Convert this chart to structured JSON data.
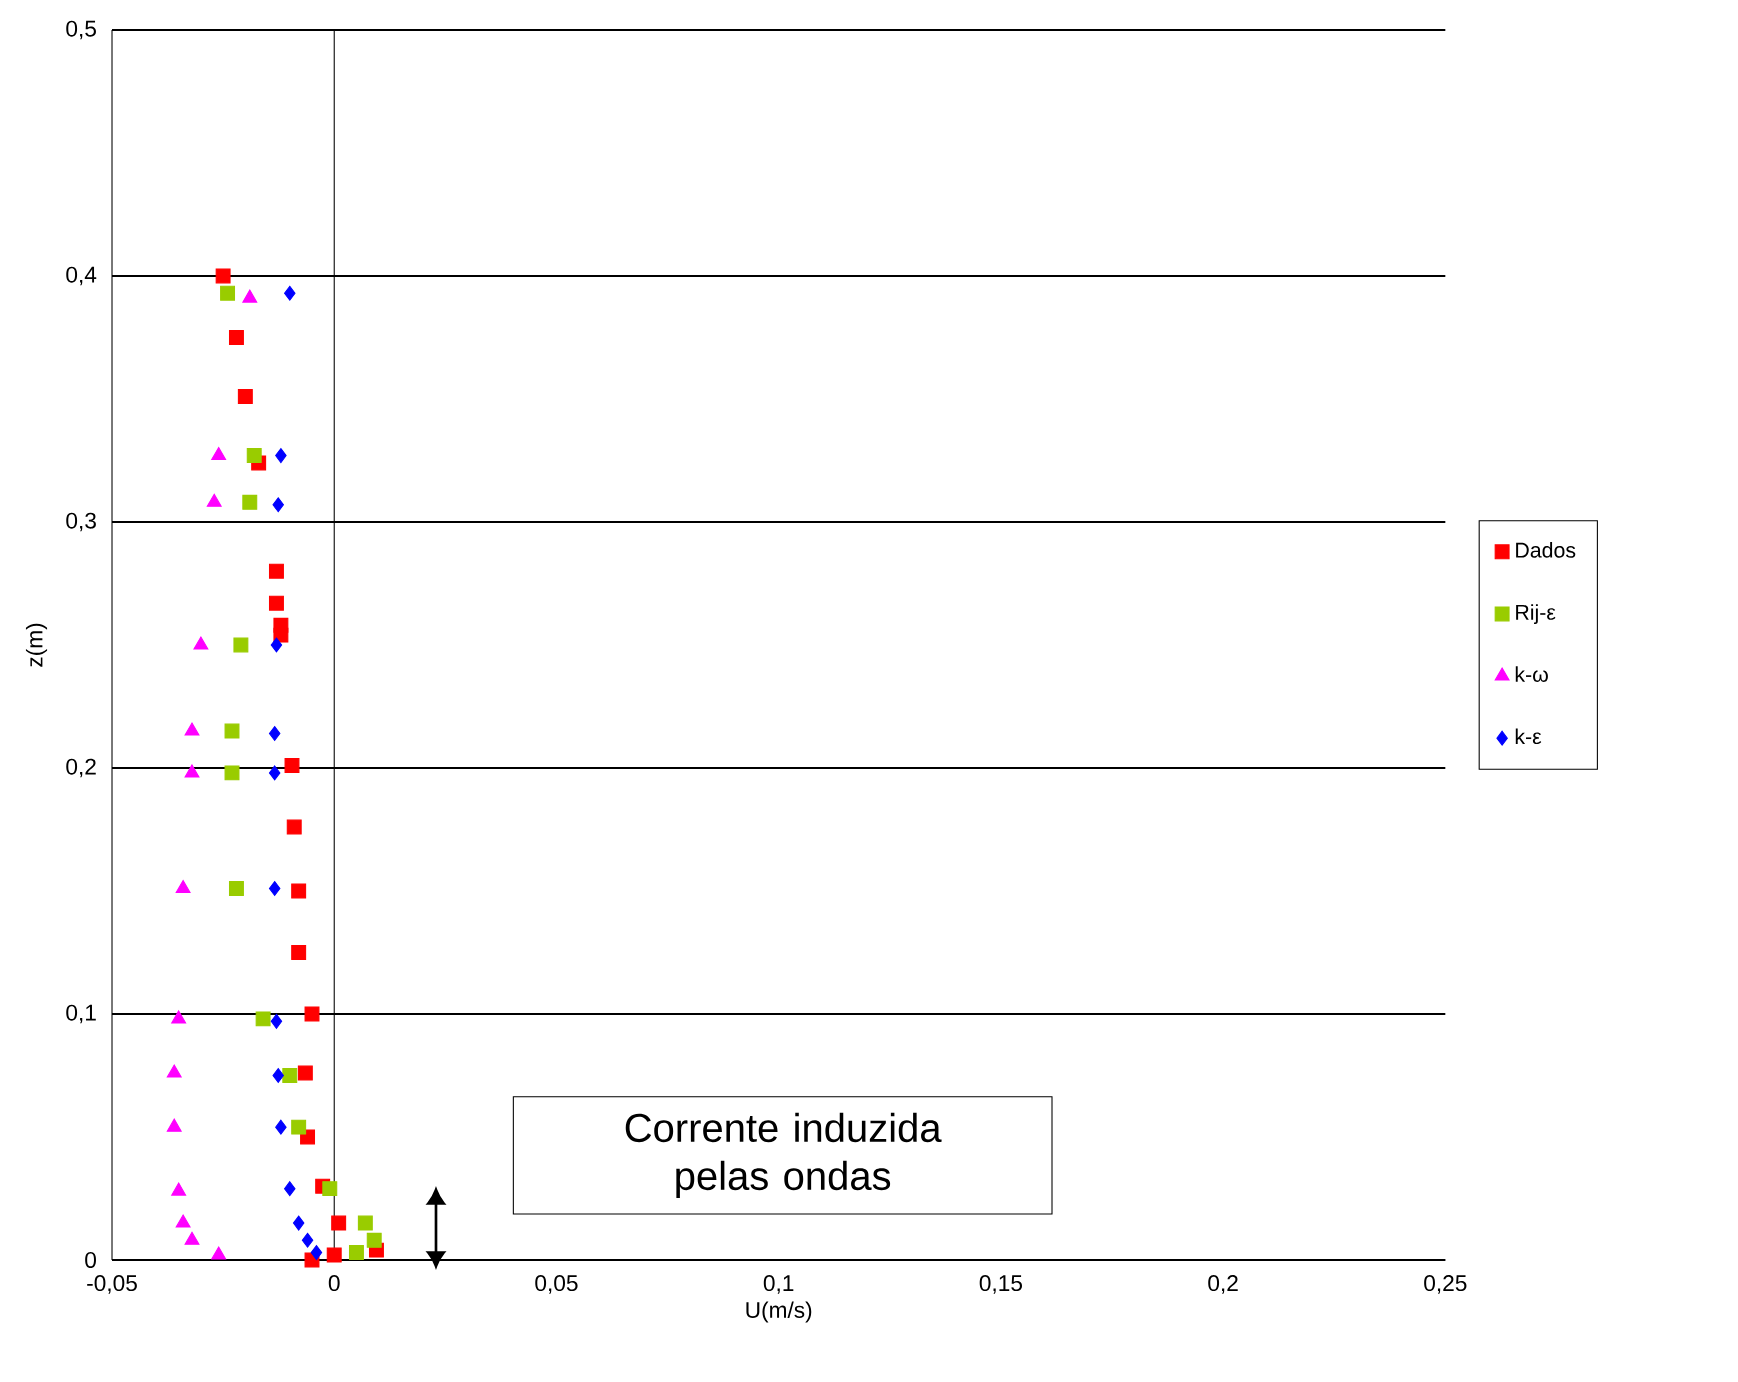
{
  "chart_data": {
    "type": "scatter",
    "xlabel": "U(m/s)",
    "ylabel": "z(m)",
    "xlim": [
      -0.05,
      0.25
    ],
    "ylim": [
      0,
      0.5
    ],
    "xticks": [
      {
        "value": -0.05,
        "label": "-0,05"
      },
      0,
      {
        "value": 0.05,
        "label": "0,05"
      },
      {
        "value": 0.1,
        "label": "0,1"
      },
      {
        "value": 0.15,
        "label": "0,15"
      },
      {
        "value": 0.2,
        "label": "0,2"
      },
      {
        "value": 0.25,
        "label": "0,25"
      }
    ],
    "yticks": [
      0,
      {
        "value": 0.1,
        "label": "0,1"
      },
      {
        "value": 0.2,
        "label": "0,2"
      },
      {
        "value": 0.3,
        "label": "0,3"
      },
      {
        "value": 0.4,
        "label": "0,4"
      },
      {
        "value": 0.5,
        "label": "0,5"
      }
    ],
    "grid": "y",
    "legend": "right",
    "ref_lines": [
      {
        "axis": "x",
        "value": 0,
        "color": "#000000"
      }
    ],
    "annotations": [
      "Corrente induzida pelas ondas"
    ],
    "series": [
      {
        "name": "Dados",
        "color": "#ff0000",
        "marker": "square",
        "x": [
          -0.025,
          -0.022,
          -0.02,
          -0.017,
          -0.013,
          -0.013,
          -0.012,
          -0.012,
          -0.0095,
          -0.009,
          -0.008,
          -0.008,
          -0.005,
          -0.0065,
          -0.006,
          -0.0026,
          0.001,
          0.0095,
          0.0,
          -0.005
        ],
        "values": [
          0.4,
          0.375,
          0.351,
          0.324,
          0.28,
          0.267,
          0.258,
          0.254,
          0.201,
          0.176,
          0.15,
          0.125,
          0.1,
          0.076,
          0.05,
          0.03,
          0.015,
          0.004,
          0.002,
          0.0
        ]
      },
      {
        "name": "Rij-ε",
        "color": "#99cc00",
        "marker": "square",
        "x": [
          -0.024,
          -0.018,
          -0.019,
          -0.021,
          -0.023,
          -0.023,
          -0.022,
          -0.016,
          -0.01,
          -0.008,
          -0.001,
          0.007,
          0.009,
          0.005
        ],
        "values": [
          0.393,
          0.327,
          0.308,
          0.25,
          0.215,
          0.198,
          0.151,
          0.098,
          0.075,
          0.054,
          0.029,
          0.015,
          0.008,
          0.003
        ]
      },
      {
        "name": "k-ω",
        "color": "#ff00ff",
        "marker": "triangle",
        "x": [
          -0.019,
          -0.026,
          -0.027,
          -0.03,
          -0.032,
          -0.032,
          -0.034,
          -0.035,
          -0.036,
          -0.036,
          -0.035,
          -0.034,
          -0.032,
          -0.026
        ],
        "values": [
          0.391,
          0.327,
          0.308,
          0.25,
          0.215,
          0.198,
          0.151,
          0.098,
          0.076,
          0.054,
          0.028,
          0.015,
          0.008,
          0.002
        ]
      },
      {
        "name": "k-ε",
        "color": "#0000ff",
        "marker": "diamond",
        "x": [
          -0.01,
          -0.012,
          -0.0126,
          -0.013,
          -0.0134,
          -0.0134,
          -0.0134,
          -0.013,
          -0.0126,
          -0.012,
          -0.01,
          -0.008,
          -0.006,
          -0.004
        ],
        "values": [
          0.393,
          0.327,
          0.307,
          0.25,
          0.214,
          0.198,
          0.151,
          0.097,
          0.075,
          0.054,
          0.029,
          0.015,
          0.008,
          0.003
        ]
      }
    ]
  }
}
